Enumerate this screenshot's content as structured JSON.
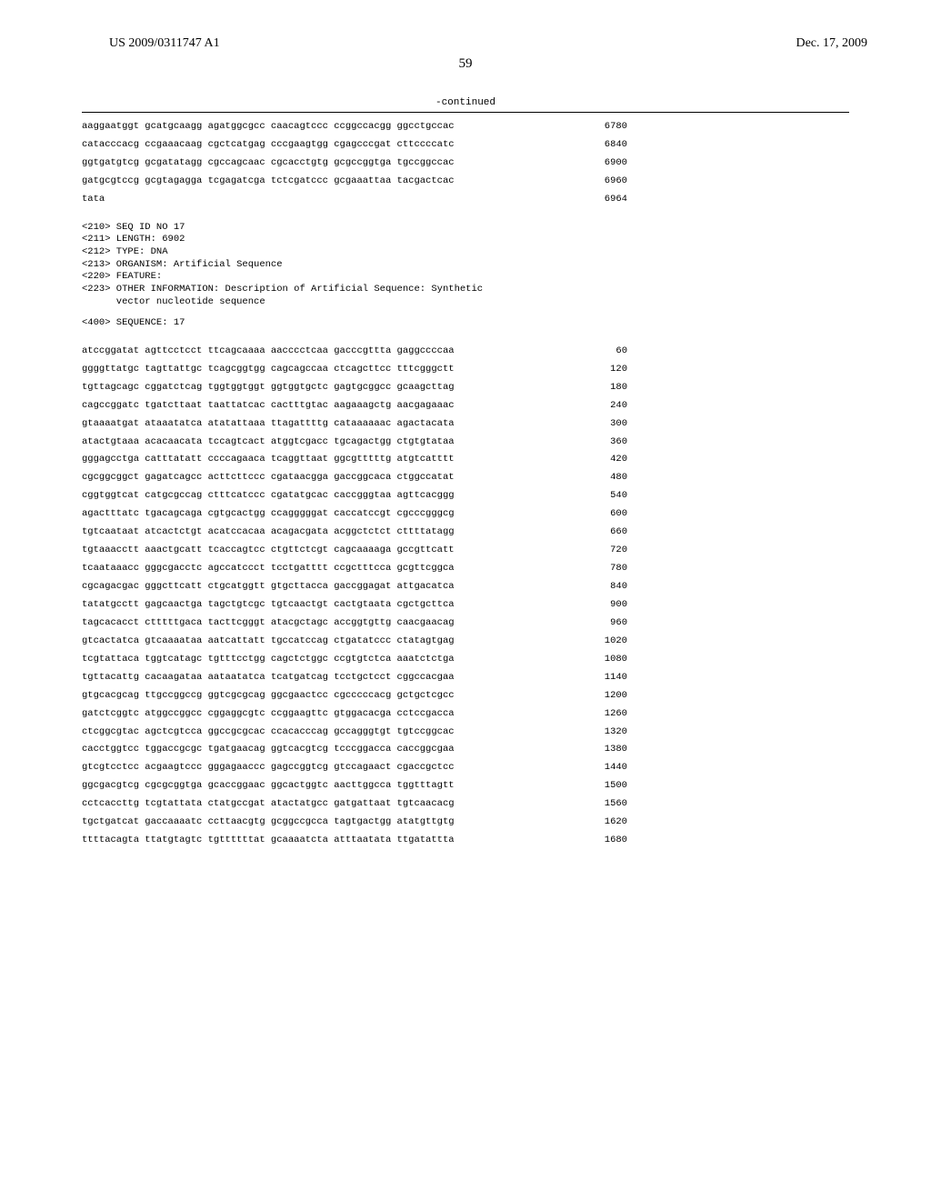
{
  "header": {
    "pub_number": "US 2009/0311747 A1",
    "date": "Dec. 17, 2009"
  },
  "page_number": "59",
  "continued_label": "-continued",
  "top_seqs": [
    {
      "text": "aaggaatggt gcatgcaagg agatggcgcc caacagtccc ccggccacgg ggcctgccac",
      "num": "6780"
    },
    {
      "text": "catacccacg ccgaaacaag cgctcatgag cccgaagtgg cgagcccgat cttccccatc",
      "num": "6840"
    },
    {
      "text": "ggtgatgtcg gcgatatagg cgccagcaac cgcacctgtg gcgccggtga tgccggccac",
      "num": "6900"
    },
    {
      "text": "gatgcgtccg gcgtagagga tcgagatcga tctcgatccc gcgaaattaa tacgactcac",
      "num": "6960"
    },
    {
      "text": "tata",
      "num": "6964"
    }
  ],
  "meta": {
    "seq_id": "<210> SEQ ID NO 17",
    "length": "<211> LENGTH: 6902",
    "type": "<212> TYPE: DNA",
    "organism": "<213> ORGANISM: Artificial Sequence",
    "feature": "<220> FEATURE:",
    "other1": "<223> OTHER INFORMATION: Description of Artificial Sequence: Synthetic",
    "other2": "      vector nucleotide sequence",
    "sequence_label": "<400> SEQUENCE: 17"
  },
  "main_seqs": [
    {
      "text": "atccggatat agttcctcct ttcagcaaaa aacccctcaa gacccgttta gaggccccaa",
      "num": "60"
    },
    {
      "text": "ggggttatgc tagttattgc tcagcggtgg cagcagccaa ctcagcttcc tttcgggctt",
      "num": "120"
    },
    {
      "text": "tgttagcagc cggatctcag tggtggtggt ggtggtgctc gagtgcggcc gcaagcttag",
      "num": "180"
    },
    {
      "text": "cagccggatc tgatcttaat taattatcac cactttgtac aagaaagctg aacgagaaac",
      "num": "240"
    },
    {
      "text": "gtaaaatgat ataaatatca atatattaaa ttagattttg cataaaaaac agactacata",
      "num": "300"
    },
    {
      "text": "atactgtaaa acacaacata tccagtcact atggtcgacc tgcagactgg ctgtgtataa",
      "num": "360"
    },
    {
      "text": "gggagcctga catttatatt ccccagaaca tcaggttaat ggcgtttttg atgtcatttt",
      "num": "420"
    },
    {
      "text": "cgcggcggct gagatcagcc acttcttccc cgataacgga gaccggcaca ctggccatat",
      "num": "480"
    },
    {
      "text": "cggtggtcat catgcgccag ctttcatccc cgatatgcac caccgggtaa agttcacggg",
      "num": "540"
    },
    {
      "text": "agactttatc tgacagcaga cgtgcactgg ccagggggat caccatccgt cgcccgggcg",
      "num": "600"
    },
    {
      "text": "tgtcaataat atcactctgt acatccacaa acagacgata acggctctct cttttatagg",
      "num": "660"
    },
    {
      "text": "tgtaaacctt aaactgcatt tcaccagtcc ctgttctcgt cagcaaaaga gccgttcatt",
      "num": "720"
    },
    {
      "text": "tcaataaacc gggcgacctc agccatccct tcctgatttt ccgctttcca gcgttcggca",
      "num": "780"
    },
    {
      "text": "cgcagacgac gggcttcatt ctgcatggtt gtgcttacca gaccggagat attgacatca",
      "num": "840"
    },
    {
      "text": "tatatgcctt gagcaactga tagctgtcgc tgtcaactgt cactgtaata cgctgcttca",
      "num": "900"
    },
    {
      "text": "tagcacacct ctttttgaca tacttcgggt atacgctagc accggtgttg caacgaacag",
      "num": "960"
    },
    {
      "text": "gtcactatca gtcaaaataa aatcattatt tgccatccag ctgatatccc ctatagtgag",
      "num": "1020"
    },
    {
      "text": "tcgtattaca tggtcatagc tgtttcctgg cagctctggc ccgtgtctca aaatctctga",
      "num": "1080"
    },
    {
      "text": "tgttacattg cacaagataa aataatatca tcatgatcag tcctgctcct cggccacgaa",
      "num": "1140"
    },
    {
      "text": "gtgcacgcag ttgccggccg ggtcgcgcag ggcgaactcc cgcccccacg gctgctcgcc",
      "num": "1200"
    },
    {
      "text": "gatctcggtc atggccggcc cggaggcgtc ccggaagttc gtggacacga cctccgacca",
      "num": "1260"
    },
    {
      "text": "ctcggcgtac agctcgtcca ggccgcgcac ccacacccag gccagggtgt tgtccggcac",
      "num": "1320"
    },
    {
      "text": "cacctggtcc tggaccgcgc tgatgaacag ggtcacgtcg tcccggacca caccggcgaa",
      "num": "1380"
    },
    {
      "text": "gtcgtcctcc acgaagtccc gggagaaccc gagccggtcg gtccagaact cgaccgctcc",
      "num": "1440"
    },
    {
      "text": "ggcgacgtcg cgcgcggtga gcaccggaac ggcactggtc aacttggcca tggtttagtt",
      "num": "1500"
    },
    {
      "text": "cctcaccttg tcgtattata ctatgccgat atactatgcc gatgattaat tgtcaacacg",
      "num": "1560"
    },
    {
      "text": "tgctgatcat gaccaaaatc ccttaacgtg gcggccgcca tagtgactgg atatgttgtg",
      "num": "1620"
    },
    {
      "text": "ttttacagta ttatgtagtc tgttttttat gcaaaatcta atttaatata ttgatattta",
      "num": "1680"
    }
  ]
}
